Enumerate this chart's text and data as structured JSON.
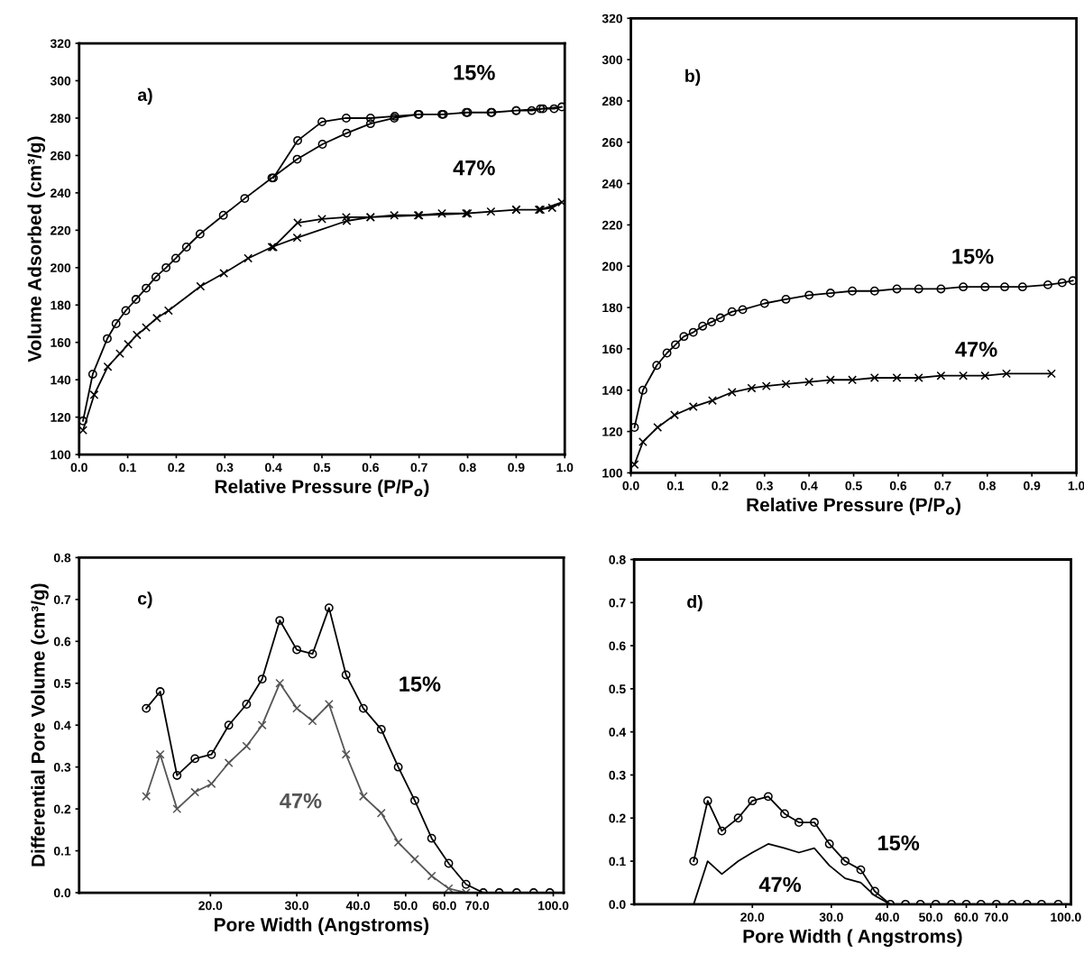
{
  "chart_data": [
    {
      "type": "line",
      "xlabel": "Relative Pressure (P/P$_{o}$)",
      "ylabel": "Volume Adsorbed (cm³/g)",
      "xlim": [
        0.0,
        1.0
      ],
      "ylim": [
        100,
        320
      ],
      "xticks": [
        {
          "value": 0,
          "label": "0.0"
        },
        0.1,
        0.2,
        0.3,
        0.4,
        0.5,
        0.6,
        0.7,
        0.8,
        0.9,
        {
          "value": 1,
          "label": "1.0"
        }
      ],
      "yticks": [
        100,
        120,
        140,
        160,
        180,
        200,
        220,
        240,
        260,
        280,
        300,
        320
      ],
      "annotations": [
        "a)"
      ],
      "series": [
        {
          "name": "15%",
          "color": "#000000",
          "marker": "circle",
          "x": [
            0.008,
            0.028,
            0.058,
            0.076,
            0.096,
            0.117,
            0.138,
            0.158,
            0.179,
            0.199,
            0.221,
            0.249,
            0.297,
            0.341,
            0.397,
            0.449,
            0.501,
            0.551,
            0.6,
            0.649,
            0.698,
            0.747,
            0.797,
            0.848,
            0.9,
            0.932,
            0.955,
            0.978,
            0.994,
            0.95,
            0.9,
            0.85,
            0.8,
            0.75,
            0.7,
            0.65,
            0.6,
            0.55,
            0.5,
            0.45,
            0.4
          ],
          "values": [
            118,
            143,
            162,
            170,
            177,
            183,
            189,
            195,
            200,
            205,
            211,
            218,
            228,
            237,
            248,
            258,
            266,
            272,
            277,
            280,
            282,
            282,
            283,
            283,
            284,
            284,
            285,
            285,
            286,
            285,
            284,
            283,
            283,
            282,
            282,
            281,
            280,
            280,
            278,
            268,
            248
          ]
        },
        {
          "name": "47%",
          "color": "#000000",
          "marker": "cross",
          "x": [
            0.008,
            0.031,
            0.059,
            0.084,
            0.101,
            0.119,
            0.138,
            0.16,
            0.184,
            0.25,
            0.298,
            0.348,
            0.397,
            0.449,
            0.551,
            0.6,
            0.649,
            0.698,
            0.747,
            0.797,
            0.848,
            0.9,
            0.947,
            0.974,
            0.994,
            0.95,
            0.9,
            0.8,
            0.7,
            0.6,
            0.55,
            0.5,
            0.45,
            0.4
          ],
          "values": [
            113,
            132,
            147,
            154,
            159,
            164,
            168,
            173,
            177,
            190,
            197,
            205,
            211,
            216,
            225,
            227,
            228,
            228,
            229,
            229,
            230,
            231,
            231,
            232,
            235,
            231,
            231,
            229,
            228,
            227,
            227,
            226,
            224,
            211
          ]
        }
      ]
    },
    {
      "type": "line",
      "xlabel": "Relative Pressure (P/P$_{o}$)",
      "xlim": [
        0.0,
        1.0
      ],
      "ylim": [
        100,
        320
      ],
      "xticks": [
        {
          "value": 0,
          "label": "0.0"
        },
        0.1,
        0.2,
        0.3,
        0.4,
        0.5,
        0.6,
        0.7,
        0.8,
        0.9,
        {
          "value": 1,
          "label": "1.0"
        }
      ],
      "yticks": [
        100,
        120,
        140,
        160,
        180,
        200,
        220,
        240,
        260,
        280,
        300,
        320
      ],
      "annotations": [
        "b)"
      ],
      "series": [
        {
          "name": "15%",
          "color": "#000000",
          "marker": "circle",
          "x": [
            0.008,
            0.027,
            0.058,
            0.081,
            0.1,
            0.119,
            0.14,
            0.161,
            0.181,
            0.201,
            0.227,
            0.251,
            0.3,
            0.348,
            0.4,
            0.448,
            0.497,
            0.547,
            0.597,
            0.646,
            0.696,
            0.746,
            0.795,
            0.839,
            0.879,
            0.936,
            0.968,
            0.992
          ],
          "values": [
            122,
            140,
            152,
            158,
            162,
            166,
            168,
            171,
            173,
            175,
            178,
            179,
            182,
            184,
            186,
            187,
            188,
            188,
            189,
            189,
            189,
            190,
            190,
            190,
            190,
            191,
            192,
            193
          ]
        },
        {
          "name": "47%",
          "color": "#000000",
          "marker": "cross",
          "x": [
            0.008,
            0.027,
            0.06,
            0.098,
            0.14,
            0.183,
            0.227,
            0.271,
            0.304,
            0.348,
            0.4,
            0.448,
            0.497,
            0.547,
            0.597,
            0.646,
            0.696,
            0.746,
            0.795,
            0.843,
            0.944
          ],
          "values": [
            104,
            115,
            122,
            128,
            132,
            135,
            139,
            141,
            142,
            143,
            144,
            145,
            145,
            146,
            146,
            146,
            147,
            147,
            147,
            148,
            148
          ]
        }
      ]
    },
    {
      "type": "line",
      "log": "x",
      "xlabel": "Pore Width (Angstroms)",
      "ylabel": "Differential Pore Volume (cm³/g)",
      "xlim": [
        10.8,
        105
      ],
      "ylim": [
        0.0,
        0.8
      ],
      "xticks": [
        {
          "value": 20,
          "label": "20.0"
        },
        {
          "value": 30,
          "label": "30.0"
        },
        {
          "value": 40,
          "label": "40.0"
        },
        {
          "value": 50,
          "label": "50.0"
        },
        {
          "value": 60,
          "label": "60.0"
        },
        {
          "value": 70,
          "label": "70.0"
        },
        {
          "value": 100,
          "label": "100.0"
        }
      ],
      "yticks": [
        {
          "value": 0,
          "label": "0.0"
        },
        0.1,
        0.2,
        0.3,
        0.4,
        0.5,
        0.6,
        0.7,
        0.8
      ],
      "annotations": [
        "c)"
      ],
      "series": [
        {
          "name": "15%",
          "color": "#000000",
          "marker": "circle",
          "x": [
            14.8,
            15.8,
            17.1,
            18.6,
            20.1,
            21.8,
            23.7,
            25.5,
            27.7,
            30.0,
            32.3,
            34.9,
            37.8,
            41.0,
            44.6,
            48.3,
            52.2,
            56.5,
            61.2,
            66.4,
            72.0,
            77.6,
            84.2,
            91.2,
            98.4
          ],
          "values": [
            0.44,
            0.48,
            0.28,
            0.32,
            0.33,
            0.4,
            0.45,
            0.51,
            0.65,
            0.58,
            0.57,
            0.68,
            0.52,
            0.44,
            0.39,
            0.3,
            0.22,
            0.13,
            0.07,
            0.02,
            0.0,
            0.0,
            0.0,
            0.0,
            0.0
          ]
        },
        {
          "name": "47%",
          "color": "#555555",
          "marker": "cross",
          "x": [
            14.8,
            15.8,
            17.1,
            18.6,
            20.1,
            21.8,
            23.7,
            25.5,
            27.7,
            30.0,
            32.3,
            34.9,
            37.8,
            41.0,
            44.6,
            48.3,
            52.2,
            56.5,
            61.2,
            66.4
          ],
          "values": [
            0.23,
            0.33,
            0.2,
            0.24,
            0.26,
            0.31,
            0.35,
            0.4,
            0.5,
            0.44,
            0.41,
            0.45,
            0.33,
            0.23,
            0.19,
            0.12,
            0.08,
            0.04,
            0.01,
            0.0
          ]
        }
      ]
    },
    {
      "type": "line",
      "log": "x",
      "xlabel": "Pore Width ( Angstroms)",
      "xlim": [
        10.9,
        102.7
      ],
      "ylim": [
        0.0,
        0.8
      ],
      "xticks": [
        {
          "value": 20,
          "label": "20.0"
        },
        {
          "value": 30,
          "label": "30.0"
        },
        {
          "value": 40,
          "label": "40.0"
        },
        {
          "value": 50,
          "label": "50.0"
        },
        {
          "value": 60,
          "label": "60.0"
        },
        {
          "value": 70,
          "label": "70.0"
        },
        {
          "value": 100,
          "label": "100.0"
        }
      ],
      "yticks": [
        {
          "value": 0,
          "label": "0.0"
        },
        0.1,
        0.2,
        0.3,
        0.4,
        0.5,
        0.6,
        0.7,
        0.8
      ],
      "annotations": [
        "d)"
      ],
      "series": [
        {
          "name": "15%",
          "color": "#000000",
          "marker": "circle",
          "x": [
            14.8,
            15.9,
            17.1,
            18.6,
            20.0,
            21.7,
            23.6,
            25.4,
            27.5,
            29.7,
            32.2,
            34.9,
            37.5,
            40.6,
            43.9,
            47.4,
            51.3,
            55.6,
            60.0,
            64.7,
            70.0,
            75.9,
            81.9,
            88.3,
            96.2
          ],
          "values": [
            0.1,
            0.24,
            0.17,
            0.2,
            0.24,
            0.25,
            0.21,
            0.19,
            0.19,
            0.14,
            0.1,
            0.08,
            0.03,
            0.0,
            0.0,
            0.0,
            0.0,
            0.0,
            0.0,
            0.0,
            0.0,
            0.0,
            0.0,
            0.0,
            0.0
          ]
        },
        {
          "name": "47%",
          "color": "#000000",
          "marker": "none",
          "x": [
            14.8,
            15.9,
            17.1,
            18.6,
            20.0,
            21.7,
            23.6,
            25.4,
            27.5,
            29.7,
            32.2,
            34.9,
            37.5,
            40.6
          ],
          "values": [
            0.0,
            0.1,
            0.07,
            0.1,
            0.12,
            0.14,
            0.13,
            0.12,
            0.13,
            0.09,
            0.06,
            0.05,
            0.02,
            0.0
          ]
        }
      ]
    }
  ]
}
